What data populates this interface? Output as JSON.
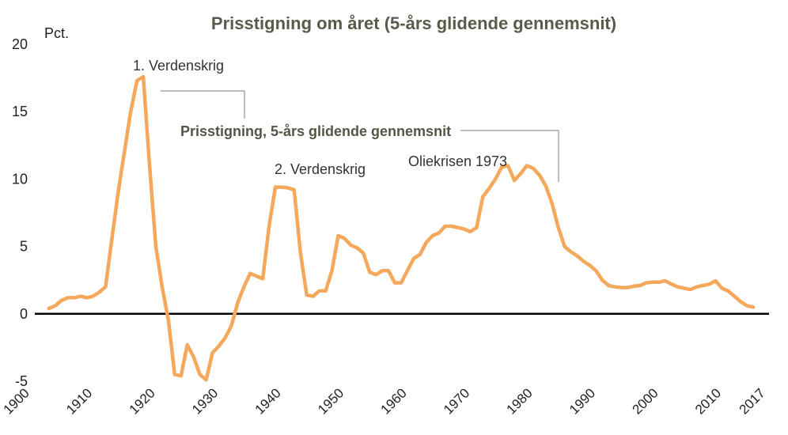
{
  "chart_data": {
    "type": "line",
    "title": "Prisstigning om året (5-års glidende gennemsnit)",
    "ylabel": "Pct.",
    "ylim": [
      -5,
      20
    ],
    "yticks": [
      -5,
      0,
      5,
      10,
      15,
      20
    ],
    "xlim": [
      1900,
      2017
    ],
    "xticks": [
      1900,
      1910,
      1920,
      1930,
      1940,
      1950,
      1960,
      1970,
      1980,
      1990,
      2000,
      2010,
      2017
    ],
    "grid": false,
    "color": "#f5a85c",
    "series": [
      {
        "name": "Prisstigning, 5-års glidende gennemsnit",
        "x": [
          1903,
          1904,
          1905,
          1906,
          1907,
          1908,
          1909,
          1910,
          1911,
          1912,
          1913,
          1914,
          1915,
          1916,
          1917,
          1918,
          1919,
          1920,
          1921,
          1922,
          1923,
          1924,
          1925,
          1926,
          1927,
          1928,
          1929,
          1930,
          1931,
          1932,
          1933,
          1934,
          1935,
          1936,
          1937,
          1938,
          1939,
          1940,
          1941,
          1942,
          1943,
          1944,
          1945,
          1946,
          1947,
          1948,
          1949,
          1950,
          1951,
          1952,
          1953,
          1954,
          1955,
          1956,
          1957,
          1958,
          1959,
          1960,
          1961,
          1962,
          1963,
          1964,
          1965,
          1966,
          1967,
          1968,
          1969,
          1970,
          1971,
          1972,
          1973,
          1974,
          1975,
          1976,
          1977,
          1978,
          1979,
          1980,
          1981,
          1982,
          1983,
          1984,
          1985,
          1986,
          1987,
          1988,
          1989,
          1990,
          1991,
          1992,
          1993,
          1994,
          1995,
          1996,
          1997,
          1998,
          1999,
          2000,
          2001,
          2002,
          2003,
          2004,
          2005,
          2006,
          2007,
          2008,
          2009,
          2010,
          2011,
          2012,
          2013,
          2014,
          2015
        ],
        "values": [
          0.4,
          0.6,
          1.0,
          1.2,
          1.2,
          1.3,
          1.2,
          1.3,
          1.6,
          2.0,
          5.5,
          9.0,
          12.0,
          15.0,
          17.3,
          17.6,
          11.0,
          5.0,
          2.0,
          -0.5,
          -4.5,
          -4.6,
          -2.3,
          -3.2,
          -4.5,
          -4.9,
          -2.9,
          -2.4,
          -1.8,
          -0.9,
          0.8,
          2.0,
          3.0,
          2.8,
          2.6,
          6.5,
          9.4,
          9.4,
          9.35,
          9.2,
          4.5,
          1.4,
          1.3,
          1.7,
          1.7,
          3.2,
          5.8,
          5.6,
          5.1,
          4.9,
          4.5,
          3.1,
          2.9,
          3.2,
          3.2,
          2.3,
          2.3,
          3.2,
          4.1,
          4.4,
          5.3,
          5.8,
          6.0,
          6.5,
          6.5,
          6.4,
          6.3,
          6.1,
          6.4,
          8.7,
          9.3,
          10.0,
          10.9,
          11.0,
          9.9,
          10.4,
          11.0,
          10.8,
          10.3,
          9.5,
          8.2,
          6.4,
          5.0,
          4.6,
          4.3,
          3.9,
          3.6,
          3.2,
          2.5,
          2.1,
          2.0,
          1.95,
          1.95,
          2.05,
          2.1,
          2.3,
          2.35,
          2.35,
          2.45,
          2.2,
          2.0,
          1.9,
          1.8,
          2.0,
          2.1,
          2.2,
          2.45,
          1.9,
          1.7,
          1.3,
          0.9,
          0.6,
          0.5
        ]
      }
    ],
    "annotations": [
      "1. Verdenskrig",
      "2. Verdenskrig",
      "Oliekrisen 1973"
    ]
  }
}
